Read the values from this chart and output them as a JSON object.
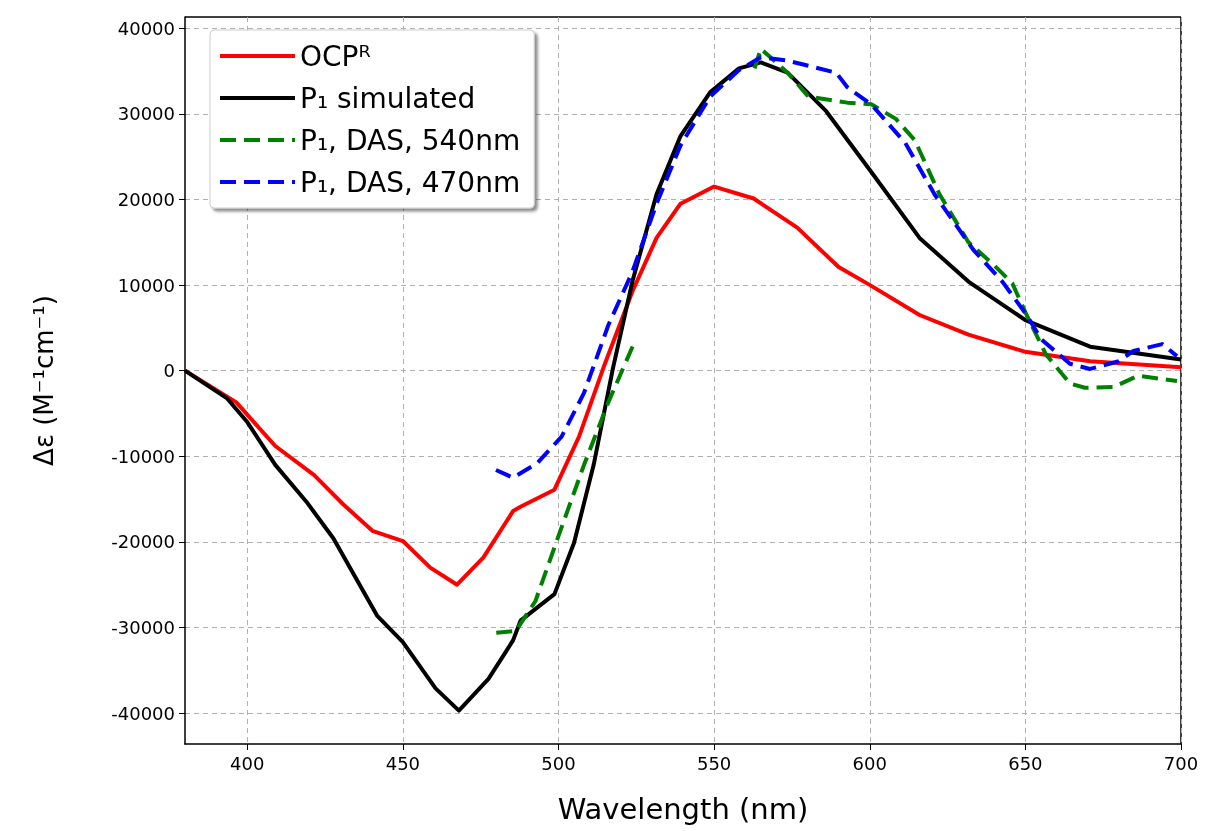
{
  "chart_data": {
    "type": "line",
    "xlabel": "Wavelength (nm)",
    "ylabel": "Δε (M⁻¹cm⁻¹)",
    "xlim": [
      380,
      700
    ],
    "xticks": [
      400,
      450,
      500,
      550,
      600,
      650,
      700
    ],
    "ylim": [
      -43600,
      41300
    ],
    "yticks": [
      -40000,
      -30000,
      -20000,
      -10000,
      0,
      10000,
      20000,
      30000,
      40000
    ],
    "grid": true,
    "legend": "top left",
    "marker": "none",
    "series": [
      {
        "name": "OCPᴿ",
        "color": "#ff0000",
        "line_style": "solid",
        "x": [
          380,
          396.5,
          409,
          421.5,
          430.8,
          440.2,
          450,
          458.8,
          467.4,
          475.9,
          485.4,
          487.8,
          498.7,
          506.6,
          514.4,
          523.8,
          531.5,
          539.2,
          550,
          562.7,
          576.7,
          590,
          600.5,
          616,
          631.7,
          650,
          670.8,
          700
        ],
        "values": [
          0,
          -3700,
          -8800,
          -12200,
          -15600,
          -18700,
          -19900,
          -23000,
          -25000,
          -21800,
          -16400,
          -15900,
          -13900,
          -7700,
          300,
          9300,
          15500,
          19500,
          21500,
          20100,
          16700,
          12100,
          9900,
          6500,
          4200,
          2200,
          1100,
          400
        ]
      },
      {
        "name": "P₁ simulated",
        "color": "#000000",
        "line_style": "solid",
        "x": [
          380,
          393.4,
          400,
          409,
          419,
          427.7,
          441.7,
          450,
          460.5,
          468,
          477.5,
          485.4,
          487.8,
          498.7,
          505,
          511.3,
          517.5,
          523.8,
          531.5,
          539.2,
          548.7,
          558,
          565,
          573.6,
          586,
          600.5,
          616,
          631.7,
          650,
          670.8,
          700
        ],
        "values": [
          0,
          -3200,
          -6000,
          -11000,
          -15300,
          -19600,
          -28600,
          -31700,
          -37100,
          -39700,
          -36000,
          -31500,
          -29200,
          -26100,
          -20100,
          -11000,
          300,
          10500,
          20600,
          27400,
          32500,
          35300,
          36000,
          34800,
          30300,
          23200,
          15500,
          10400,
          5900,
          2800,
          1300
        ]
      },
      {
        "name": "P₁, DAS, 540nm",
        "color": "#008000",
        "line_style": "dashed",
        "x": [
          480,
          486.3,
          492.6,
          500.3,
          508.2,
          516,
          524.5,
          544,
          563,
          565,
          573.6,
          580.3,
          592.8,
          600.5,
          608.4,
          614.5,
          622.4,
          631.7,
          639.7,
          645.8,
          650.4,
          656.6,
          664.3,
          669.1,
          678.4,
          686.2,
          698.7
        ],
        "values": [
          -30600,
          -30400,
          -26900,
          -19000,
          -11000,
          -3700,
          3400,
          null,
          35300,
          37600,
          34800,
          32000,
          31300,
          31100,
          29400,
          26900,
          20600,
          15000,
          12400,
          10200,
          6500,
          1900,
          -1500,
          -2000,
          -1900,
          -600,
          -1200
        ]
      },
      {
        "name": "P₁, DAS, 470nm",
        "color": "#0000ff",
        "line_style": "dashed",
        "x": [
          479.9,
          485.4,
          493.2,
          501,
          508.2,
          516,
          523.8,
          531.5,
          539.2,
          548.7,
          558,
          565,
          573.6,
          580.3,
          589.2,
          592.8,
          600.5,
          611.4,
          620.8,
          633.3,
          642.6,
          650.4,
          655,
          664.3,
          670.8,
          680,
          684.7,
          694,
          698.7
        ],
        "values": [
          -11600,
          -12500,
          -10800,
          -7700,
          -2600,
          5300,
          11600,
          19500,
          26300,
          32000,
          35100,
          36600,
          36200,
          35600,
          34800,
          33100,
          31100,
          26600,
          20600,
          14100,
          10400,
          6500,
          3700,
          800,
          200,
          1100,
          2300,
          3100,
          1700
        ]
      }
    ]
  }
}
